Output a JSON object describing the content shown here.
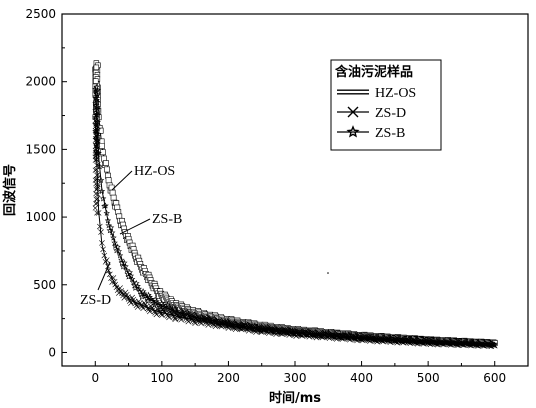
{
  "chart_data": {
    "type": "line",
    "title": "",
    "xlabel": "时间/ms",
    "ylabel": "回波信号",
    "xlim": [
      -50,
      650
    ],
    "ylim": [
      -100,
      2500
    ],
    "xticks": [
      "0",
      "100",
      "200",
      "300",
      "400",
      "500",
      "600"
    ],
    "yticks": [
      "0",
      "500",
      "1000",
      "1500",
      "2000",
      "2500"
    ],
    "grid": false,
    "legend": {
      "title": "含油污泥样品",
      "placement": "top-right",
      "entries": [
        "HZ-OS",
        "ZS-D",
        "ZS-B"
      ]
    },
    "annotations": [
      "HZ-OS",
      "ZS-B",
      "ZS-D"
    ],
    "series": [
      {
        "name": "HZ-OS",
        "marker": "square",
        "x": [
          0,
          5,
          10,
          20,
          30,
          40,
          50,
          60,
          70,
          80,
          90,
          100,
          120,
          150,
          200,
          250,
          300,
          350,
          400,
          450,
          500,
          550,
          600
        ],
        "y": [
          2120,
          1750,
          1520,
          1280,
          1100,
          950,
          830,
          720,
          630,
          550,
          480,
          420,
          350,
          290,
          230,
          190,
          160,
          140,
          120,
          105,
          90,
          80,
          70
        ]
      },
      {
        "name": "ZS-D",
        "marker": "x",
        "x": [
          0,
          5,
          10,
          20,
          30,
          40,
          50,
          60,
          70,
          80,
          90,
          100,
          120,
          150,
          200,
          250,
          300,
          350,
          400,
          450,
          500,
          550,
          600
        ],
        "y": [
          1700,
          1050,
          800,
          600,
          500,
          440,
          400,
          370,
          350,
          330,
          310,
          295,
          270,
          240,
          200,
          165,
          140,
          120,
          100,
          85,
          70,
          60,
          50
        ]
      },
      {
        "name": "ZS-B",
        "marker": "star",
        "x": [
          0,
          5,
          10,
          20,
          30,
          40,
          50,
          60,
          70,
          80,
          90,
          100,
          120,
          150,
          200,
          250,
          300,
          350,
          400,
          450,
          500,
          550,
          600
        ],
        "y": [
          1950,
          1450,
          1200,
          950,
          800,
          680,
          580,
          500,
          440,
          400,
          370,
          345,
          305,
          260,
          210,
          175,
          150,
          130,
          110,
          95,
          80,
          70,
          60
        ]
      }
    ]
  }
}
